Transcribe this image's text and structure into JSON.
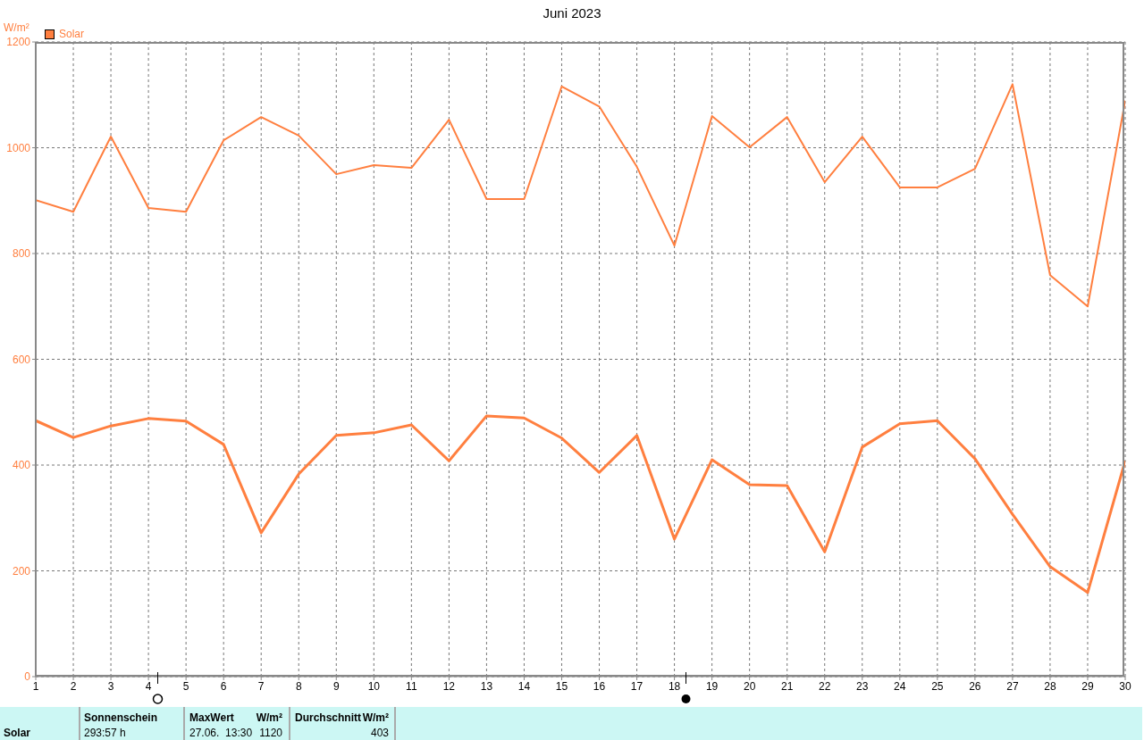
{
  "chart_data": {
    "type": "line",
    "title": "Juni 2023",
    "ylabel": "W/m²",
    "x": [
      1,
      2,
      3,
      4,
      5,
      6,
      7,
      8,
      9,
      10,
      11,
      12,
      13,
      14,
      15,
      16,
      17,
      18,
      19,
      20,
      21,
      22,
      23,
      24,
      25,
      26,
      27,
      28,
      29,
      30
    ],
    "series": [
      {
        "name": "Solar",
        "color": "#ff7f3f",
        "values": [
          901,
          879,
          1021,
          886,
          879,
          1014,
          1058,
          1023,
          950,
          967,
          962,
          1053,
          903,
          903,
          1116,
          1078,
          964,
          815,
          1060,
          1001,
          1058,
          935,
          1021,
          925,
          925,
          960,
          1120,
          759,
          700,
          1089
        ]
      },
      {
        "color": "#ff7f3f",
        "values": [
          484,
          452,
          474,
          488,
          483,
          439,
          272,
          383,
          456,
          461,
          476,
          408,
          493,
          489,
          451,
          386,
          456,
          260,
          410,
          363,
          361,
          236,
          434,
          478,
          484,
          412,
          307,
          208,
          159,
          408
        ]
      }
    ],
    "xlim": [
      1,
      30
    ],
    "xticks": [
      1,
      2,
      3,
      4,
      5,
      6,
      7,
      8,
      9,
      10,
      11,
      12,
      13,
      14,
      15,
      16,
      17,
      18,
      19,
      20,
      21,
      22,
      23,
      24,
      25,
      26,
      27,
      28,
      29,
      30
    ],
    "ylim": [
      0,
      1200
    ],
    "yticks": [
      0,
      200,
      400,
      600,
      800,
      1000,
      1200
    ],
    "grid": true,
    "legend": "top left",
    "marker": "none",
    "line_style": "solid",
    "annotations": [
      "Solar",
      "Sonnenschein",
      "293:57 h",
      "MaxWert",
      "W/m²",
      "27.06.  13:30",
      "1120",
      "Durchschnitt",
      "W/m²",
      "403"
    ]
  }
}
